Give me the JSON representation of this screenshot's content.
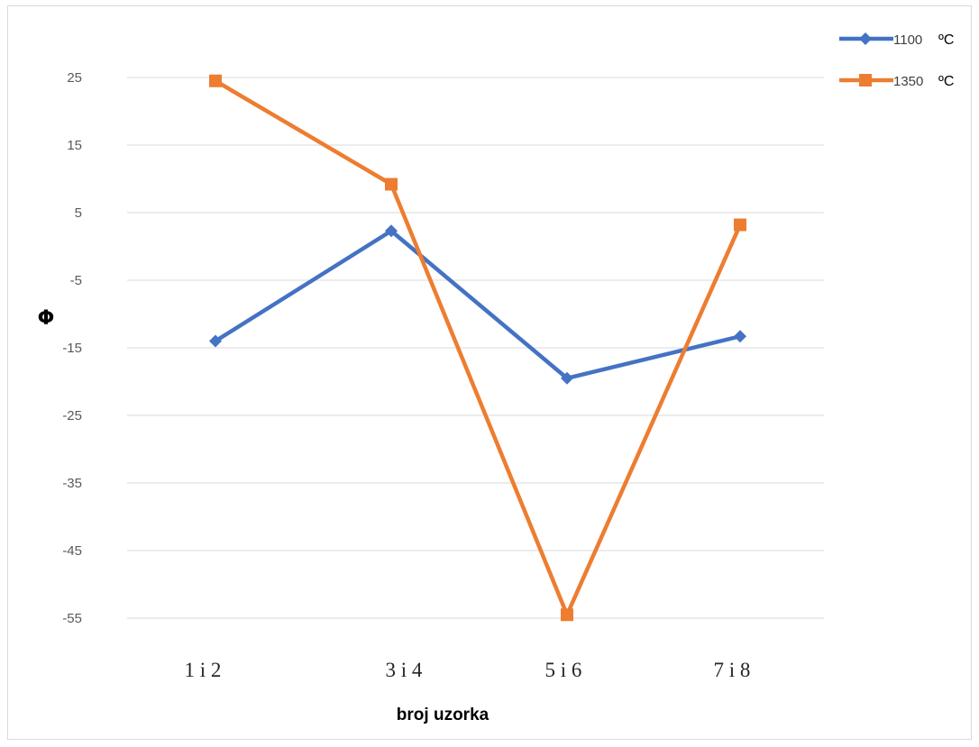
{
  "chart_data": {
    "type": "line",
    "categories": [
      "1 i 2",
      "3 i 4",
      "5 i 6",
      "7 i 8"
    ],
    "xlabel": "broj uzorka",
    "ylabel": "Φ",
    "ylim": [
      -60,
      30
    ],
    "yticks": [
      25,
      15,
      5,
      -5,
      -15,
      -25,
      -35,
      -45,
      -55
    ],
    "grid": true,
    "legend_position": "top-right",
    "series": [
      {
        "name": "1100",
        "unit": "ºC",
        "color": "#4472c4",
        "marker": "diamond",
        "values": [
          -14,
          2.3,
          -19.5,
          -13.3
        ]
      },
      {
        "name": "1350",
        "unit": "ºC",
        "color": "#ed7d31",
        "marker": "square",
        "values": [
          24.5,
          9.2,
          -54.5,
          3.2
        ]
      }
    ]
  }
}
